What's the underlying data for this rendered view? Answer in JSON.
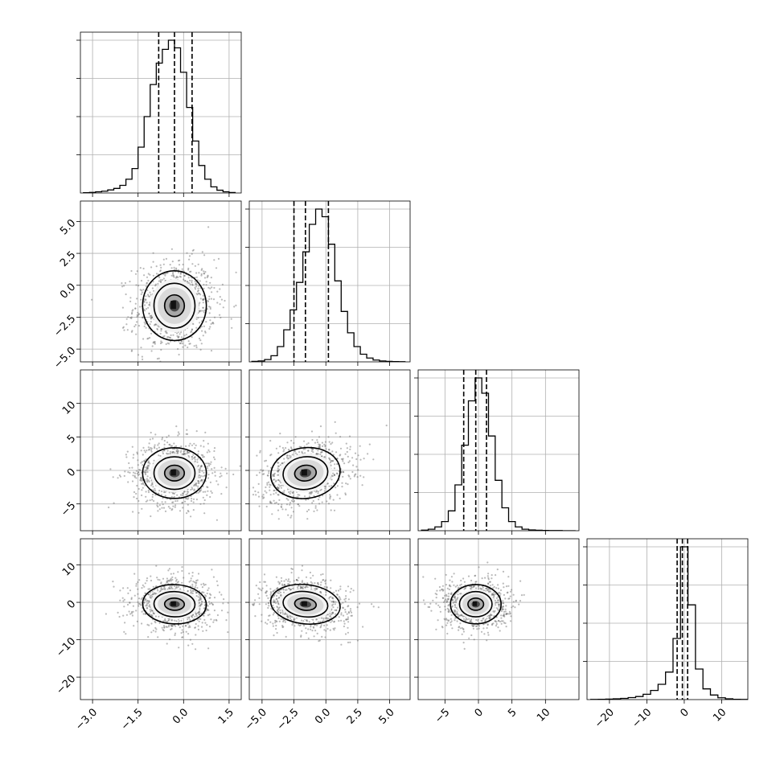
{
  "chart_data": {
    "type": "corner",
    "n_params": 4,
    "grid": true,
    "parameters": [
      {
        "range": [
          -3.4,
          1.9
        ],
        "ticks": [
          -3.0,
          -1.5,
          0.0,
          1.5
        ],
        "tick_labels": [
          "−3.0",
          "−1.5",
          "0.0",
          "1.5"
        ],
        "median": -0.3,
        "q16": -0.82,
        "q84": 0.28,
        "std": 0.5
      },
      {
        "range": [
          -6.0,
          6.6
        ],
        "ticks": [
          -5.0,
          -2.5,
          0.0,
          2.5,
          5.0
        ],
        "tick_labels": [
          "−5.0",
          "−2.5",
          "0.0",
          "2.5",
          "5.0"
        ],
        "median": -1.6,
        "q16": -2.5,
        "q84": 0.2,
        "std": 1.3
      },
      {
        "range": [
          -9.0,
          15.0
        ],
        "ticks": [
          -5,
          0,
          5,
          10
        ],
        "tick_labels": [
          "−5",
          "0",
          "5",
          "10"
        ],
        "median": -0.4,
        "q16": -2.2,
        "q84": 1.2,
        "std": 1.8
      },
      {
        "range": [
          -26.0,
          17.0
        ],
        "ticks": [
          -20,
          -10,
          0,
          10
        ],
        "tick_labels": [
          "−20",
          "−10",
          "0",
          "10"
        ],
        "median": -0.5,
        "q16": -1.9,
        "q84": 0.9,
        "std": 2.5
      }
    ],
    "histograms": [
      {
        "bins": [
          -3.3,
          -3.1,
          -2.9,
          -2.7,
          -2.5,
          -2.3,
          -2.1,
          -1.9,
          -1.7,
          -1.5,
          -1.3,
          -1.1,
          -0.9,
          -0.7,
          -0.5,
          -0.3,
          -0.1,
          0.1,
          0.3,
          0.5,
          0.7,
          0.9,
          1.1,
          1.3,
          1.5,
          1.7
        ],
        "counts": [
          0.002,
          0.004,
          0.008,
          0.012,
          0.02,
          0.03,
          0.05,
          0.09,
          0.16,
          0.3,
          0.5,
          0.71,
          0.85,
          0.94,
          1.0,
          0.95,
          0.79,
          0.56,
          0.34,
          0.18,
          0.09,
          0.04,
          0.018,
          0.008,
          0.003,
          0.001
        ]
      },
      {
        "bins": [
          -5.8,
          -5.3,
          -4.8,
          -4.3,
          -3.8,
          -3.3,
          -2.8,
          -2.3,
          -1.8,
          -1.3,
          -0.8,
          -0.3,
          0.2,
          0.7,
          1.2,
          1.7,
          2.2,
          2.7,
          3.2,
          3.7,
          4.2,
          4.7,
          5.2,
          5.7,
          6.2
        ],
        "counts": [
          0.003,
          0.006,
          0.015,
          0.04,
          0.1,
          0.21,
          0.34,
          0.52,
          0.72,
          0.9,
          1.0,
          0.95,
          0.77,
          0.53,
          0.33,
          0.19,
          0.1,
          0.05,
          0.025,
          0.012,
          0.006,
          0.003,
          0.002,
          0.001
        ]
      },
      {
        "bins": [
          -8.5,
          -7.5,
          -6.5,
          -5.5,
          -4.5,
          -3.5,
          -2.5,
          -1.5,
          -0.5,
          0.5,
          1.5,
          2.5,
          3.5,
          4.5,
          5.5,
          6.5,
          7.5,
          8.5,
          9.5,
          10.5,
          11.5,
          12.5,
          13.5,
          14.5
        ],
        "counts": [
          0.004,
          0.01,
          0.025,
          0.06,
          0.13,
          0.3,
          0.56,
          0.85,
          1.0,
          0.9,
          0.62,
          0.33,
          0.15,
          0.06,
          0.025,
          0.01,
          0.005,
          0.003,
          0.002,
          0.001,
          0.001,
          0.0,
          0.0
        ]
      },
      {
        "bins": [
          -25,
          -23,
          -21,
          -19,
          -17,
          -15,
          -13,
          -11,
          -9,
          -7,
          -5,
          -3,
          -1,
          1,
          3,
          5,
          7,
          9,
          11,
          13,
          15,
          17
        ],
        "counts": [
          0.001,
          0.002,
          0.003,
          0.005,
          0.008,
          0.013,
          0.02,
          0.035,
          0.06,
          0.1,
          0.18,
          0.4,
          1.0,
          0.62,
          0.2,
          0.07,
          0.03,
          0.012,
          0.005,
          0.002,
          0.001
        ]
      }
    ],
    "correlations": [
      [
        0,
        1,
        0.05
      ],
      [
        0,
        2,
        0.0
      ],
      [
        0,
        3,
        -0.05
      ],
      [
        1,
        2,
        0.22
      ],
      [
        1,
        3,
        -0.18
      ],
      [
        2,
        3,
        0.0
      ]
    ]
  }
}
